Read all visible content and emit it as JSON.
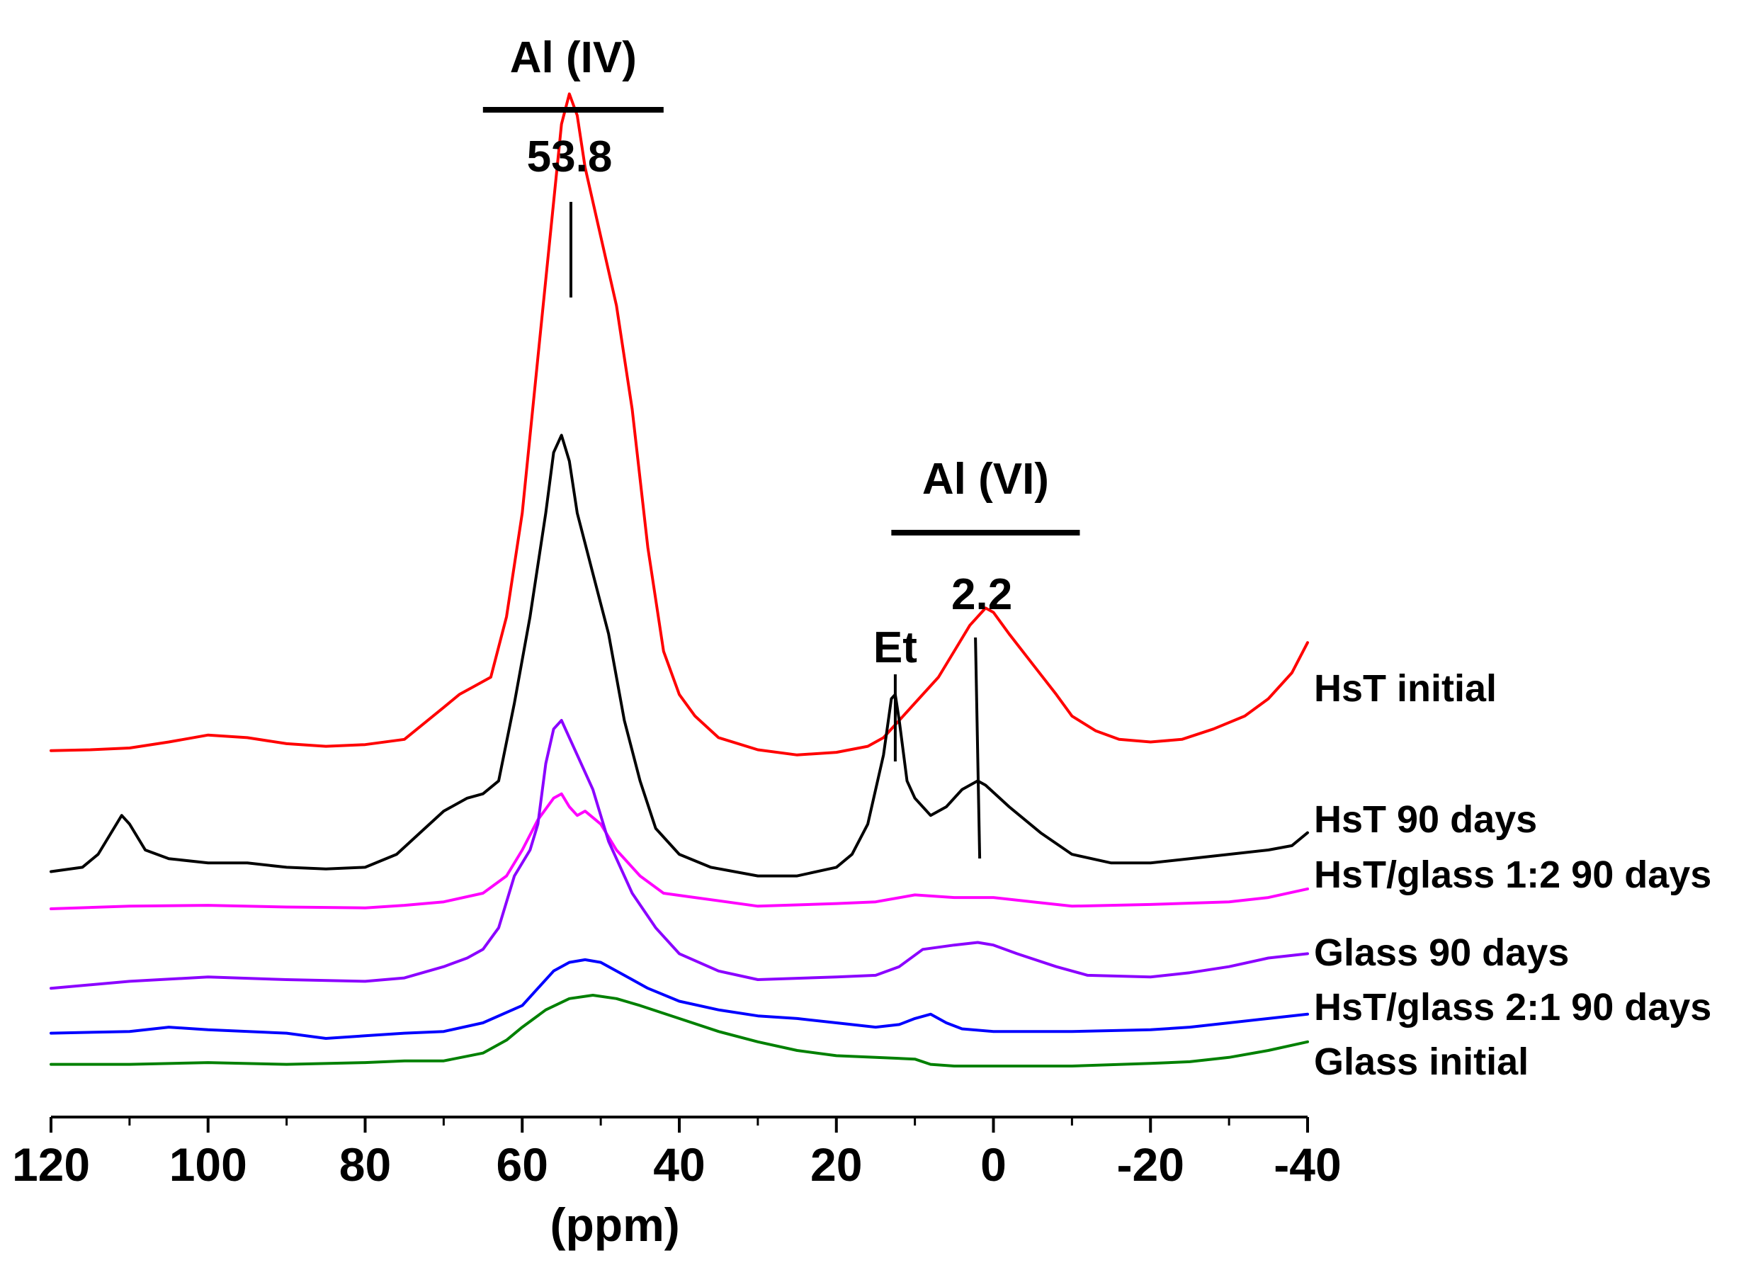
{
  "chart_data": {
    "type": "line",
    "title": "",
    "xlabel": "(ppm)",
    "ylabel": "",
    "xlim": [
      120,
      -40
    ],
    "x_ticks_major": [
      120,
      100,
      80,
      60,
      40,
      20,
      0,
      -20,
      -40
    ],
    "x_tick_labels": [
      "120",
      "100",
      "80",
      "60",
      "40",
      "20",
      "0",
      "-20",
      "-40"
    ],
    "x_ticks_minor": [
      110,
      90,
      70,
      50,
      30,
      10,
      -10,
      -30
    ],
    "y_visible": false,
    "grid": false,
    "legend": "inline labels at right end of each trace",
    "offset_units": "arbitrary intensity units; each trace stacked vertically",
    "series": [
      {
        "name": "HsT initial",
        "color": "#ff0000",
        "points": [
          [
            120,
            36.5
          ],
          [
            115,
            36.6
          ],
          [
            110,
            36.8
          ],
          [
            105,
            37.5
          ],
          [
            100,
            38.3
          ],
          [
            95,
            38.0
          ],
          [
            90,
            37.3
          ],
          [
            85,
            37.0
          ],
          [
            80,
            37.2
          ],
          [
            75,
            37.8
          ],
          [
            70,
            41.5
          ],
          [
            68,
            43.0
          ],
          [
            66,
            44.0
          ],
          [
            64,
            45.0
          ],
          [
            62,
            52.0
          ],
          [
            60,
            64.0
          ],
          [
            58,
            82.0
          ],
          [
            56,
            100.0
          ],
          [
            55,
            109.0
          ],
          [
            54,
            112.5
          ],
          [
            53,
            110.0
          ],
          [
            52,
            104.0
          ],
          [
            50,
            96.0
          ],
          [
            48,
            88.0
          ],
          [
            46,
            76.0
          ],
          [
            44,
            60.0
          ],
          [
            42,
            48.0
          ],
          [
            40,
            43.0
          ],
          [
            38,
            40.5
          ],
          [
            35,
            38.0
          ],
          [
            30,
            36.6
          ],
          [
            25,
            36.0
          ],
          [
            20,
            36.3
          ],
          [
            16,
            37.0
          ],
          [
            14,
            38.0
          ],
          [
            12,
            40.0
          ],
          [
            10,
            42.0
          ],
          [
            7,
            45.0
          ],
          [
            5,
            48.0
          ],
          [
            3,
            51.0
          ],
          [
            1,
            53.0
          ],
          [
            0,
            52.5
          ],
          [
            -2,
            50.0
          ],
          [
            -5,
            46.5
          ],
          [
            -8,
            43.0
          ],
          [
            -10,
            40.5
          ],
          [
            -13,
            38.8
          ],
          [
            -16,
            37.8
          ],
          [
            -20,
            37.5
          ],
          [
            -24,
            37.8
          ],
          [
            -28,
            39.0
          ],
          [
            -32,
            40.5
          ],
          [
            -35,
            42.5
          ],
          [
            -38,
            45.5
          ],
          [
            -40,
            49.0
          ]
        ]
      },
      {
        "name": "HsT 90 days",
        "color": "#000000",
        "points": [
          [
            120,
            22.5
          ],
          [
            116,
            23.0
          ],
          [
            114,
            24.5
          ],
          [
            112,
            27.5
          ],
          [
            111,
            29.0
          ],
          [
            110,
            28.0
          ],
          [
            108,
            25.0
          ],
          [
            105,
            24.0
          ],
          [
            100,
            23.5
          ],
          [
            95,
            23.5
          ],
          [
            90,
            23.0
          ],
          [
            85,
            22.8
          ],
          [
            80,
            23.0
          ],
          [
            76,
            24.5
          ],
          [
            73,
            27.0
          ],
          [
            70,
            29.5
          ],
          [
            67,
            31.0
          ],
          [
            65,
            31.5
          ],
          [
            63,
            33.0
          ],
          [
            61,
            42.0
          ],
          [
            59,
            52.0
          ],
          [
            57,
            64.0
          ],
          [
            56,
            71.0
          ],
          [
            55,
            73.0
          ],
          [
            54,
            70.0
          ],
          [
            53,
            64.0
          ],
          [
            51,
            57.0
          ],
          [
            49,
            50.0
          ],
          [
            47,
            40.0
          ],
          [
            45,
            33.0
          ],
          [
            43,
            27.5
          ],
          [
            40,
            24.5
          ],
          [
            36,
            23.0
          ],
          [
            30,
            22.0
          ],
          [
            25,
            22.0
          ],
          [
            20,
            23.0
          ],
          [
            18,
            24.5
          ],
          [
            16,
            28.0
          ],
          [
            14,
            36.0
          ],
          [
            13,
            42.5
          ],
          [
            12.5,
            43.0
          ],
          [
            12,
            40.0
          ],
          [
            11,
            33.0
          ],
          [
            10,
            31.0
          ],
          [
            8,
            29.0
          ],
          [
            6,
            30.0
          ],
          [
            4,
            32.0
          ],
          [
            2,
            33.0
          ],
          [
            1,
            32.5
          ],
          [
            -2,
            30.0
          ],
          [
            -6,
            27.0
          ],
          [
            -10,
            24.5
          ],
          [
            -15,
            23.5
          ],
          [
            -20,
            23.5
          ],
          [
            -25,
            24.0
          ],
          [
            -30,
            24.5
          ],
          [
            -35,
            25.0
          ],
          [
            -38,
            25.5
          ],
          [
            -40,
            27.0
          ]
        ]
      },
      {
        "name": "HsT/glass 1:2 90 days",
        "color": "#ff00ff",
        "points": [
          [
            120,
            18.2
          ],
          [
            110,
            18.5
          ],
          [
            100,
            18.6
          ],
          [
            90,
            18.4
          ],
          [
            80,
            18.3
          ],
          [
            75,
            18.6
          ],
          [
            70,
            19.0
          ],
          [
            65,
            20.0
          ],
          [
            62,
            22.0
          ],
          [
            60,
            25.0
          ],
          [
            58,
            28.5
          ],
          [
            56,
            31.0
          ],
          [
            55,
            31.5
          ],
          [
            54,
            30.0
          ],
          [
            53,
            29.0
          ],
          [
            52,
            29.5
          ],
          [
            50,
            28.0
          ],
          [
            48,
            25.0
          ],
          [
            45,
            22.0
          ],
          [
            42,
            20.0
          ],
          [
            38,
            19.5
          ],
          [
            30,
            18.5
          ],
          [
            20,
            18.8
          ],
          [
            15,
            19.0
          ],
          [
            10,
            19.8
          ],
          [
            5,
            19.5
          ],
          [
            0,
            19.5
          ],
          [
            -5,
            19.0
          ],
          [
            -10,
            18.5
          ],
          [
            -20,
            18.7
          ],
          [
            -30,
            19.0
          ],
          [
            -35,
            19.5
          ],
          [
            -40,
            20.5
          ]
        ]
      },
      {
        "name": "Glass 90 days",
        "color": "#8b00ff",
        "points": [
          [
            120,
            9.0
          ],
          [
            110,
            9.8
          ],
          [
            100,
            10.3
          ],
          [
            90,
            10.0
          ],
          [
            80,
            9.8
          ],
          [
            75,
            10.2
          ],
          [
            70,
            11.5
          ],
          [
            67,
            12.5
          ],
          [
            65,
            13.5
          ],
          [
            63,
            16.0
          ],
          [
            61,
            22.0
          ],
          [
            59,
            25.0
          ],
          [
            58,
            28.0
          ],
          [
            57,
            35.0
          ],
          [
            56,
            39.0
          ],
          [
            55,
            40.0
          ],
          [
            54,
            38.0
          ],
          [
            53,
            36.0
          ],
          [
            51,
            32.0
          ],
          [
            49,
            26.0
          ],
          [
            46,
            20.0
          ],
          [
            43,
            16.0
          ],
          [
            40,
            13.0
          ],
          [
            35,
            11.0
          ],
          [
            30,
            10.0
          ],
          [
            20,
            10.3
          ],
          [
            15,
            10.5
          ],
          [
            12,
            11.5
          ],
          [
            9,
            13.5
          ],
          [
            5,
            14.0
          ],
          [
            2,
            14.3
          ],
          [
            0,
            14.0
          ],
          [
            -3,
            13.0
          ],
          [
            -8,
            11.5
          ],
          [
            -12,
            10.5
          ],
          [
            -20,
            10.3
          ],
          [
            -25,
            10.8
          ],
          [
            -30,
            11.5
          ],
          [
            -35,
            12.5
          ],
          [
            -40,
            13.0
          ]
        ]
      },
      {
        "name": "HsT/glass 2:1 90 days",
        "color": "#0000ff",
        "points": [
          [
            120,
            3.8
          ],
          [
            110,
            4.0
          ],
          [
            105,
            4.5
          ],
          [
            100,
            4.2
          ],
          [
            90,
            3.8
          ],
          [
            85,
            3.2
          ],
          [
            80,
            3.5
          ],
          [
            75,
            3.8
          ],
          [
            70,
            4.0
          ],
          [
            65,
            5.0
          ],
          [
            60,
            7.0
          ],
          [
            58,
            9.0
          ],
          [
            56,
            11.0
          ],
          [
            54,
            12.0
          ],
          [
            52,
            12.3
          ],
          [
            50,
            12.0
          ],
          [
            47,
            10.5
          ],
          [
            44,
            9.0
          ],
          [
            40,
            7.5
          ],
          [
            35,
            6.5
          ],
          [
            30,
            5.8
          ],
          [
            25,
            5.5
          ],
          [
            20,
            5.0
          ],
          [
            15,
            4.5
          ],
          [
            12,
            4.8
          ],
          [
            10,
            5.5
          ],
          [
            8,
            6.0
          ],
          [
            6,
            5.0
          ],
          [
            4,
            4.3
          ],
          [
            0,
            4.0
          ],
          [
            -10,
            4.0
          ],
          [
            -20,
            4.2
          ],
          [
            -25,
            4.5
          ],
          [
            -30,
            5.0
          ],
          [
            -35,
            5.5
          ],
          [
            -40,
            6.0
          ]
        ]
      },
      {
        "name": "Glass initial",
        "color": "#008000",
        "points": [
          [
            120,
            0.2
          ],
          [
            110,
            0.2
          ],
          [
            100,
            0.4
          ],
          [
            90,
            0.2
          ],
          [
            80,
            0.4
          ],
          [
            75,
            0.6
          ],
          [
            70,
            0.6
          ],
          [
            65,
            1.5
          ],
          [
            62,
            3.0
          ],
          [
            60,
            4.5
          ],
          [
            57,
            6.5
          ],
          [
            54,
            7.8
          ],
          [
            51,
            8.2
          ],
          [
            48,
            7.8
          ],
          [
            45,
            7.0
          ],
          [
            40,
            5.5
          ],
          [
            35,
            4.0
          ],
          [
            30,
            2.8
          ],
          [
            25,
            1.8
          ],
          [
            20,
            1.2
          ],
          [
            15,
            1.0
          ],
          [
            10,
            0.8
          ],
          [
            8,
            0.2
          ],
          [
            5,
            0.0
          ],
          [
            0,
            0.0
          ],
          [
            -10,
            0.0
          ],
          [
            -20,
            0.3
          ],
          [
            -25,
            0.5
          ],
          [
            -30,
            1.0
          ],
          [
            -35,
            1.8
          ],
          [
            -40,
            2.8
          ]
        ]
      }
    ],
    "annotations": [
      {
        "text": "Al (IV)",
        "type": "region-label",
        "x_range": [
          65,
          42
        ]
      },
      {
        "text": "53.8",
        "type": "peak-marker",
        "x": 53.8
      },
      {
        "text": "Al (VI)",
        "type": "region-label",
        "x_range": [
          13,
          -11
        ]
      },
      {
        "text": "2.2",
        "type": "peak-marker",
        "x": 2.2
      },
      {
        "text": "Et",
        "type": "peak-marker",
        "x": 12.5
      }
    ]
  }
}
